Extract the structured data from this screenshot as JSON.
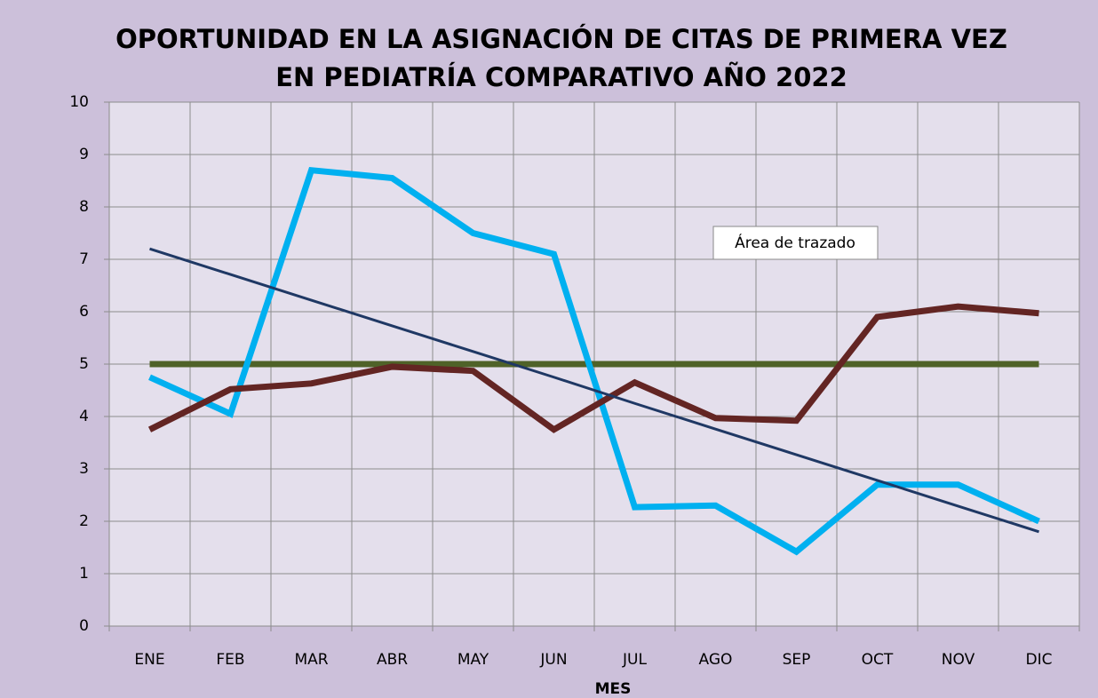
{
  "chart_data": {
    "type": "line",
    "title": [
      "OPORTUNIDAD EN LA ASIGNACIÓN DE CITAS DE PRIMERA VEZ",
      "EN PEDIATRÍA COMPARATIVO AÑO 2022"
    ],
    "x_label": "MES",
    "categories": [
      "ENE",
      "FEB",
      "MAR",
      "ABR",
      "MAY",
      "JUN",
      "JUL",
      "AGO",
      "SEP",
      "OCT",
      "NOV",
      "DIC"
    ],
    "series": [
      {
        "color": "#00b0f0",
        "values": [
          4.75,
          4.05,
          8.7,
          8.55,
          7.5,
          7.1,
          2.27,
          2.3,
          1.42,
          2.7,
          2.7,
          2.0
        ]
      },
      {
        "color": "#632523",
        "values": [
          3.75,
          4.52,
          4.63,
          4.95,
          4.87,
          3.75,
          4.65,
          3.97,
          3.92,
          5.9,
          6.1,
          5.97
        ]
      },
      {
        "color": "#4f6228",
        "values": [
          5,
          5,
          5,
          5,
          5,
          5,
          5,
          5,
          5,
          5,
          5,
          5
        ]
      },
      {
        "color": "#1f3864",
        "values": [
          7.2,
          6.71,
          6.22,
          5.73,
          5.24,
          4.75,
          4.25,
          3.76,
          3.27,
          2.78,
          2.29,
          1.8
        ]
      }
    ],
    "ylim": [
      0,
      10
    ],
    "yticks": [
      0,
      1,
      2,
      3,
      4,
      5,
      6,
      7,
      8,
      9,
      10
    ],
    "grid": true,
    "annotations": [
      {
        "text": "Área de trazado"
      }
    ]
  }
}
